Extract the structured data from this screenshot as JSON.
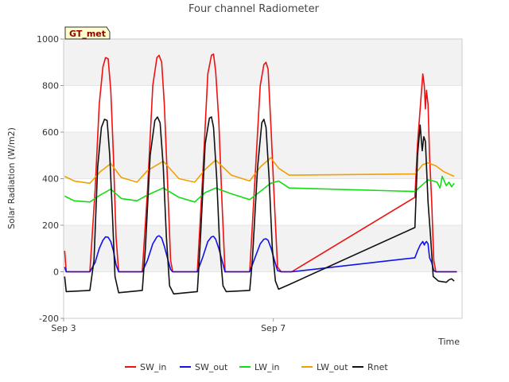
{
  "chart_data": {
    "type": "line",
    "title": "Four channel Radiometer",
    "xlabel": "Time",
    "ylabel": "Solar Radiation (W/m2)",
    "badge": "GT_met",
    "ylim": [
      -200,
      1000
    ],
    "yticks": [
      -200,
      0,
      200,
      400,
      600,
      800,
      1000
    ],
    "xlim": [
      0,
      7.6
    ],
    "xticks": [
      {
        "value": 0,
        "label": "Sep 3"
      },
      {
        "value": 4,
        "label": "Sep 7"
      }
    ],
    "grid": "horizontal bands",
    "legend_position": "bottom",
    "series": [
      {
        "name": "SW_in",
        "color": "#ee1111",
        "points": [
          [
            0.02,
            90
          ],
          [
            0.05,
            0
          ],
          [
            0.3,
            0
          ],
          [
            0.5,
            0
          ],
          [
            0.6,
            350
          ],
          [
            0.68,
            720
          ],
          [
            0.75,
            880
          ],
          [
            0.8,
            920
          ],
          [
            0.85,
            915
          ],
          [
            0.9,
            780
          ],
          [
            0.95,
            500
          ],
          [
            1.0,
            150
          ],
          [
            1.05,
            0
          ],
          [
            1.5,
            0
          ],
          [
            1.6,
            350
          ],
          [
            1.7,
            800
          ],
          [
            1.78,
            920
          ],
          [
            1.82,
            930
          ],
          [
            1.87,
            900
          ],
          [
            1.92,
            720
          ],
          [
            1.98,
            400
          ],
          [
            2.04,
            50
          ],
          [
            2.08,
            0
          ],
          [
            2.55,
            0
          ],
          [
            2.65,
            400
          ],
          [
            2.75,
            850
          ],
          [
            2.82,
            930
          ],
          [
            2.86,
            935
          ],
          [
            2.9,
            860
          ],
          [
            2.96,
            650
          ],
          [
            3.02,
            300
          ],
          [
            3.08,
            0
          ],
          [
            3.55,
            0
          ],
          [
            3.65,
            400
          ],
          [
            3.75,
            800
          ],
          [
            3.82,
            890
          ],
          [
            3.86,
            900
          ],
          [
            3.9,
            870
          ],
          [
            3.96,
            600
          ],
          [
            4.02,
            300
          ],
          [
            4.08,
            20
          ],
          [
            4.15,
            0
          ],
          [
            4.35,
            0
          ],
          [
            6.7,
            320
          ],
          [
            6.75,
            550
          ],
          [
            6.8,
            700
          ],
          [
            6.85,
            850
          ],
          [
            6.88,
            800
          ],
          [
            6.9,
            700
          ],
          [
            6.92,
            780
          ],
          [
            6.95,
            720
          ],
          [
            6.98,
            500
          ],
          [
            7.02,
            300
          ],
          [
            7.06,
            50
          ],
          [
            7.1,
            0
          ],
          [
            7.5,
            0
          ]
        ]
      },
      {
        "name": "SW_out",
        "color": "#1111ee",
        "points": [
          [
            0.02,
            20
          ],
          [
            0.05,
            0
          ],
          [
            0.5,
            0
          ],
          [
            0.6,
            40
          ],
          [
            0.68,
            100
          ],
          [
            0.75,
            135
          ],
          [
            0.8,
            150
          ],
          [
            0.85,
            148
          ],
          [
            0.9,
            130
          ],
          [
            0.95,
            90
          ],
          [
            1.0,
            30
          ],
          [
            1.05,
            0
          ],
          [
            1.5,
            0
          ],
          [
            1.6,
            50
          ],
          [
            1.7,
            120
          ],
          [
            1.78,
            150
          ],
          [
            1.82,
            155
          ],
          [
            1.87,
            145
          ],
          [
            1.92,
            110
          ],
          [
            1.98,
            60
          ],
          [
            2.04,
            10
          ],
          [
            2.08,
            0
          ],
          [
            2.55,
            0
          ],
          [
            2.65,
            60
          ],
          [
            2.75,
            130
          ],
          [
            2.82,
            150
          ],
          [
            2.86,
            152
          ],
          [
            2.9,
            140
          ],
          [
            2.96,
            100
          ],
          [
            3.02,
            50
          ],
          [
            3.08,
            0
          ],
          [
            3.55,
            0
          ],
          [
            3.65,
            60
          ],
          [
            3.75,
            120
          ],
          [
            3.82,
            140
          ],
          [
            3.86,
            142
          ],
          [
            3.9,
            135
          ],
          [
            3.96,
            100
          ],
          [
            4.02,
            50
          ],
          [
            4.08,
            5
          ],
          [
            4.15,
            0
          ],
          [
            4.35,
            0
          ],
          [
            6.7,
            60
          ],
          [
            6.75,
            90
          ],
          [
            6.8,
            115
          ],
          [
            6.85,
            130
          ],
          [
            6.88,
            115
          ],
          [
            6.9,
            125
          ],
          [
            6.92,
            130
          ],
          [
            6.95,
            120
          ],
          [
            6.98,
            60
          ],
          [
            7.02,
            40
          ],
          [
            7.06,
            5
          ],
          [
            7.1,
            0
          ],
          [
            7.5,
            0
          ]
        ]
      },
      {
        "name": "LW_in",
        "color": "#11dd11",
        "points": [
          [
            0.02,
            325
          ],
          [
            0.2,
            305
          ],
          [
            0.5,
            300
          ],
          [
            0.7,
            330
          ],
          [
            0.9,
            355
          ],
          [
            1.1,
            315
          ],
          [
            1.4,
            305
          ],
          [
            1.6,
            330
          ],
          [
            1.9,
            360
          ],
          [
            2.2,
            320
          ],
          [
            2.5,
            300
          ],
          [
            2.7,
            340
          ],
          [
            2.9,
            360
          ],
          [
            3.2,
            335
          ],
          [
            3.55,
            310
          ],
          [
            3.75,
            345
          ],
          [
            3.95,
            380
          ],
          [
            4.1,
            390
          ],
          [
            4.3,
            360
          ],
          [
            6.7,
            345
          ],
          [
            6.85,
            375
          ],
          [
            6.95,
            395
          ],
          [
            7.05,
            390
          ],
          [
            7.12,
            385
          ],
          [
            7.18,
            360
          ],
          [
            7.22,
            410
          ],
          [
            7.3,
            370
          ],
          [
            7.35,
            385
          ],
          [
            7.4,
            365
          ],
          [
            7.45,
            380
          ]
        ]
      },
      {
        "name": "LW_out",
        "color": "#f0a000",
        "points": [
          [
            0.02,
            410
          ],
          [
            0.2,
            390
          ],
          [
            0.5,
            380
          ],
          [
            0.7,
            430
          ],
          [
            0.9,
            465
          ],
          [
            1.1,
            405
          ],
          [
            1.4,
            385
          ],
          [
            1.6,
            435
          ],
          [
            1.9,
            475
          ],
          [
            2.2,
            400
          ],
          [
            2.5,
            385
          ],
          [
            2.7,
            440
          ],
          [
            2.9,
            480
          ],
          [
            3.2,
            415
          ],
          [
            3.55,
            390
          ],
          [
            3.75,
            450
          ],
          [
            3.95,
            490
          ],
          [
            4.1,
            445
          ],
          [
            4.3,
            415
          ],
          [
            6.7,
            420
          ],
          [
            6.85,
            460
          ],
          [
            6.95,
            468
          ],
          [
            7.1,
            455
          ],
          [
            7.25,
            430
          ],
          [
            7.45,
            410
          ]
        ]
      },
      {
        "name": "Rnet",
        "color": "#111111",
        "points": [
          [
            0.02,
            -20
          ],
          [
            0.05,
            -85
          ],
          [
            0.5,
            -80
          ],
          [
            0.58,
            50
          ],
          [
            0.65,
            450
          ],
          [
            0.72,
            620
          ],
          [
            0.78,
            655
          ],
          [
            0.83,
            650
          ],
          [
            0.88,
            500
          ],
          [
            0.93,
            250
          ],
          [
            0.98,
            -20
          ],
          [
            1.05,
            -90
          ],
          [
            1.5,
            -80
          ],
          [
            1.56,
            100
          ],
          [
            1.65,
            500
          ],
          [
            1.74,
            650
          ],
          [
            1.79,
            665
          ],
          [
            1.84,
            640
          ],
          [
            1.9,
            450
          ],
          [
            1.96,
            150
          ],
          [
            2.02,
            -60
          ],
          [
            2.1,
            -95
          ],
          [
            2.55,
            -85
          ],
          [
            2.6,
            100
          ],
          [
            2.7,
            550
          ],
          [
            2.78,
            660
          ],
          [
            2.82,
            665
          ],
          [
            2.86,
            620
          ],
          [
            2.92,
            400
          ],
          [
            2.98,
            100
          ],
          [
            3.04,
            -60
          ],
          [
            3.1,
            -85
          ],
          [
            3.55,
            -80
          ],
          [
            3.6,
            50
          ],
          [
            3.7,
            450
          ],
          [
            3.78,
            640
          ],
          [
            3.82,
            655
          ],
          [
            3.86,
            620
          ],
          [
            3.92,
            400
          ],
          [
            3.98,
            100
          ],
          [
            4.04,
            -40
          ],
          [
            4.1,
            -75
          ],
          [
            4.3,
            -55
          ],
          [
            6.7,
            190
          ],
          [
            6.75,
            500
          ],
          [
            6.8,
            630
          ],
          [
            6.84,
            520
          ],
          [
            6.87,
            580
          ],
          [
            6.9,
            560
          ],
          [
            6.95,
            300
          ],
          [
            7.0,
            150
          ],
          [
            7.05,
            -20
          ],
          [
            7.15,
            -40
          ],
          [
            7.3,
            -45
          ],
          [
            7.35,
            -35
          ],
          [
            7.4,
            -30
          ],
          [
            7.45,
            -40
          ]
        ]
      }
    ]
  }
}
